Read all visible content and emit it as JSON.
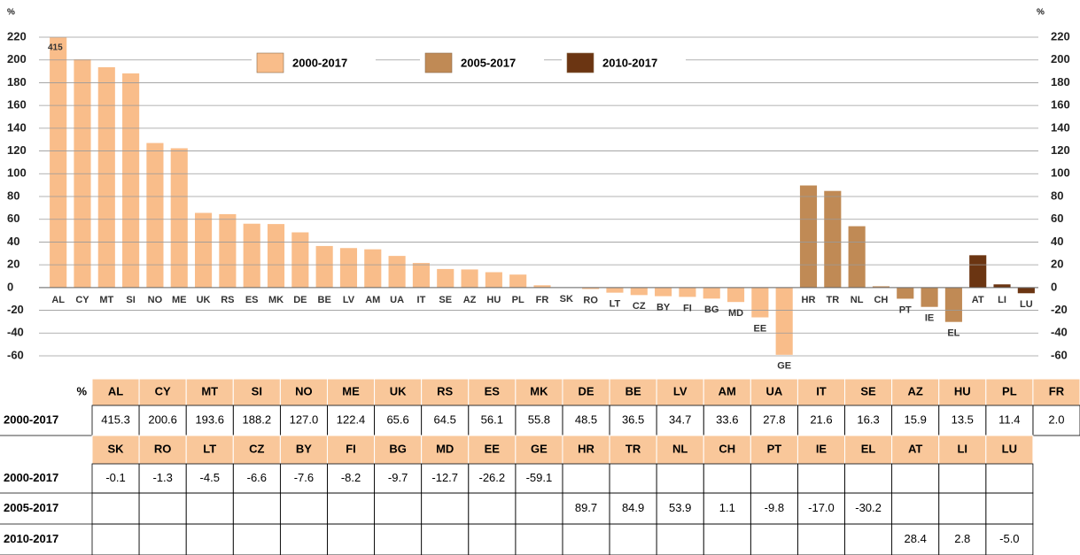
{
  "chart_data": {
    "type": "bar",
    "y_label": "%",
    "annotation": "415",
    "categories": [
      "AL",
      "CY",
      "MT",
      "SI",
      "NO",
      "ME",
      "UK",
      "RS",
      "ES",
      "MK",
      "DE",
      "BE",
      "LV",
      "AM",
      "UA",
      "IT",
      "SE",
      "AZ",
      "HU",
      "PL",
      "FR",
      "SK",
      "RO",
      "LT",
      "CZ",
      "BY",
      "FI",
      "BG",
      "MD",
      "EE",
      "GE",
      "HR",
      "TR",
      "NL",
      "CH",
      "PT",
      "IE",
      "EL",
      "AT",
      "LI",
      "LU"
    ],
    "series": [
      {
        "name": "2000-2017",
        "color": "#f9bd8a",
        "values": [
          415.3,
          200.6,
          193.6,
          188.2,
          127.0,
          122.4,
          65.6,
          64.5,
          56.1,
          55.8,
          48.5,
          36.5,
          34.7,
          33.6,
          27.8,
          21.6,
          16.3,
          15.9,
          13.5,
          11.4,
          2.0,
          -0.1,
          -1.3,
          -4.5,
          -6.6,
          -7.6,
          -8.2,
          -9.7,
          -12.7,
          -26.2,
          -59.1,
          null,
          null,
          null,
          null,
          null,
          null,
          null,
          null,
          null,
          null
        ],
        "value_labels": [
          "415.3",
          "200.6",
          "193.6",
          "188.2",
          "127.0",
          "122.4",
          "65.6",
          "64.5",
          "56.1",
          "55.8",
          "48.5",
          "36.5",
          "34.7",
          "33.6",
          "27.8",
          "21.6",
          "16.3",
          "15.9",
          "13.5",
          "11.4",
          "2.0",
          "-0.1",
          "-1.3",
          "-4.5",
          "-6.6",
          "-7.6",
          "-8.2",
          "-9.7",
          "-12.7",
          "-26.2",
          "-59.1",
          null,
          null,
          null,
          null,
          null,
          null,
          null,
          null,
          null,
          null
        ]
      },
      {
        "name": "2005-2017",
        "color": "#c08a55",
        "values": [
          null,
          null,
          null,
          null,
          null,
          null,
          null,
          null,
          null,
          null,
          null,
          null,
          null,
          null,
          null,
          null,
          null,
          null,
          null,
          null,
          null,
          null,
          null,
          null,
          null,
          null,
          null,
          null,
          null,
          null,
          null,
          89.7,
          84.9,
          53.9,
          1.1,
          -9.8,
          -17.0,
          -30.2,
          null,
          null,
          null
        ],
        "value_labels": [
          null,
          null,
          null,
          null,
          null,
          null,
          null,
          null,
          null,
          null,
          null,
          null,
          null,
          null,
          null,
          null,
          null,
          null,
          null,
          null,
          null,
          null,
          null,
          null,
          null,
          null,
          null,
          null,
          null,
          null,
          null,
          "89.7",
          "84.9",
          "53.9",
          "1.1",
          "-9.8",
          "-17.0",
          "-30.2",
          null,
          null,
          null
        ]
      },
      {
        "name": "2010-2017",
        "color": "#6b3512",
        "values": [
          null,
          null,
          null,
          null,
          null,
          null,
          null,
          null,
          null,
          null,
          null,
          null,
          null,
          null,
          null,
          null,
          null,
          null,
          null,
          null,
          null,
          null,
          null,
          null,
          null,
          null,
          null,
          null,
          null,
          null,
          null,
          null,
          null,
          null,
          null,
          null,
          null,
          null,
          28.4,
          2.8,
          -5.0
        ],
        "value_labels": [
          null,
          null,
          null,
          null,
          null,
          null,
          null,
          null,
          null,
          null,
          null,
          null,
          null,
          null,
          null,
          null,
          null,
          null,
          null,
          null,
          null,
          null,
          null,
          null,
          null,
          null,
          null,
          null,
          null,
          null,
          null,
          null,
          null,
          null,
          null,
          null,
          null,
          null,
          "28.4",
          "2.8",
          "-5.0"
        ]
      }
    ],
    "ylim": [
      -60,
      220
    ],
    "yticks": [
      -60,
      -40,
      -20,
      0,
      20,
      40,
      60,
      80,
      100,
      120,
      140,
      160,
      180,
      200,
      220
    ],
    "grid": true
  }
}
